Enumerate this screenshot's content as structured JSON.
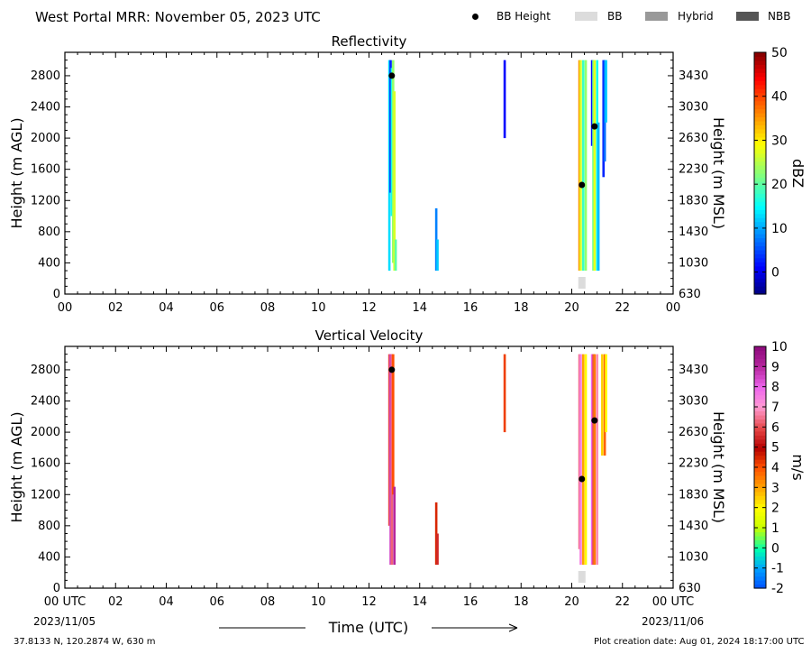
{
  "header": {
    "title": "West Portal MRR:  November 05, 2023 UTC"
  },
  "legend": {
    "items": [
      {
        "label": "BB Height",
        "kind": "dot",
        "color": "#000000"
      },
      {
        "label": "BB",
        "kind": "bar",
        "color": "#dcdcdc"
      },
      {
        "label": "Hybrid",
        "kind": "bar",
        "color": "#999999"
      },
      {
        "label": "NBB",
        "kind": "bar",
        "color": "#555555"
      }
    ]
  },
  "footer": {
    "coords": "37.8133 N, 120.2874 W, 630 m",
    "creation": "Plot creation date: Aug 01, 2024 18:17:00 UTC",
    "date_left": "2023/11/05",
    "date_right": "2023/11/06"
  },
  "chart_data": [
    {
      "type": "heatmap",
      "title": "Reflectivity",
      "xlabel": "",
      "ylabel": "Height (m AGL)",
      "y2label": "Height (m MSL)",
      "xlim": [
        0,
        24
      ],
      "ylim": [
        0,
        3100
      ],
      "x_ticks": [
        "00",
        "02",
        "04",
        "06",
        "08",
        "10",
        "12",
        "14",
        "16",
        "18",
        "20",
        "22",
        "00"
      ],
      "y_ticks": [
        0,
        400,
        800,
        1200,
        1600,
        2000,
        2400,
        2800
      ],
      "y2_ticks": [
        630,
        1030,
        1430,
        1830,
        2230,
        2630,
        3030,
        3430
      ],
      "colorbar": {
        "label": "dBZ",
        "min": -5,
        "max": 50,
        "ticks": [
          0,
          10,
          20,
          30,
          40,
          50
        ]
      },
      "streaks": [
        {
          "t": 12.8,
          "y0": 300,
          "y1": 3000,
          "v": 13
        },
        {
          "t": 12.85,
          "y0": 1300,
          "y1": 3000,
          "v": 3
        },
        {
          "t": 12.9,
          "y0": 1000,
          "y1": 2900,
          "v": 16
        },
        {
          "t": 12.95,
          "y0": 400,
          "y1": 3000,
          "v": 23
        },
        {
          "t": 13.0,
          "y0": 300,
          "y1": 2600,
          "v": 27
        },
        {
          "t": 13.05,
          "y0": 300,
          "y1": 700,
          "v": 20
        },
        {
          "t": 14.65,
          "y0": 300,
          "y1": 1100,
          "v": 8
        },
        {
          "t": 14.7,
          "y0": 300,
          "y1": 700,
          "v": 12
        },
        {
          "t": 17.35,
          "y0": 2000,
          "y1": 3000,
          "v": 1
        },
        {
          "t": 20.3,
          "y0": 300,
          "y1": 3000,
          "v": 35
        },
        {
          "t": 20.35,
          "y0": 300,
          "y1": 3000,
          "v": 27
        },
        {
          "t": 20.45,
          "y0": 300,
          "y1": 3000,
          "v": 18
        },
        {
          "t": 20.55,
          "y0": 300,
          "y1": 3000,
          "v": 23
        },
        {
          "t": 20.8,
          "y0": 1900,
          "y1": 3000,
          "v": 2
        },
        {
          "t": 20.85,
          "y0": 300,
          "y1": 3000,
          "v": 21
        },
        {
          "t": 20.9,
          "y0": 300,
          "y1": 3000,
          "v": 28
        },
        {
          "t": 21.0,
          "y0": 300,
          "y1": 3000,
          "v": 16
        },
        {
          "t": 21.05,
          "y0": 300,
          "y1": 2200,
          "v": 11
        },
        {
          "t": 21.25,
          "y0": 1500,
          "y1": 3000,
          "v": 3
        },
        {
          "t": 21.3,
          "y0": 1700,
          "y1": 3000,
          "v": 7
        },
        {
          "t": 21.35,
          "y0": 2200,
          "y1": 3000,
          "v": 12
        }
      ],
      "bb_height": [
        {
          "t": 12.9,
          "h": 2800
        },
        {
          "t": 20.4,
          "h": 1400
        },
        {
          "t": 20.9,
          "h": 2150
        }
      ],
      "bb_type": [
        {
          "t": 20.4,
          "kind": "BB"
        }
      ]
    },
    {
      "type": "heatmap",
      "title": "Vertical Velocity",
      "xlabel": "Time (UTC)",
      "ylabel": "Height (m AGL)",
      "y2label": "Height (m MSL)",
      "xlim": [
        0,
        24
      ],
      "ylim": [
        0,
        3100
      ],
      "x_ticks": [
        "00 UTC",
        "02",
        "04",
        "06",
        "08",
        "10",
        "12",
        "14",
        "16",
        "18",
        "20",
        "22",
        "00 UTC"
      ],
      "y_ticks": [
        0,
        400,
        800,
        1200,
        1600,
        2000,
        2400,
        2800
      ],
      "y2_ticks": [
        630,
        1030,
        1430,
        1830,
        2230,
        2630,
        3030,
        3430
      ],
      "colorbar": {
        "label": "m/s",
        "min": -2,
        "max": 10,
        "ticks": [
          -2,
          -1,
          0,
          1,
          2,
          3,
          4,
          5,
          6,
          7,
          8,
          9,
          10
        ]
      },
      "streaks": [
        {
          "t": 12.8,
          "y0": 800,
          "y1": 3000,
          "v": 6
        },
        {
          "t": 12.85,
          "y0": 300,
          "y1": 3000,
          "v": 8.5
        },
        {
          "t": 12.9,
          "y0": 300,
          "y1": 3000,
          "v": 6.3
        },
        {
          "t": 12.95,
          "y0": 1200,
          "y1": 3000,
          "v": 4
        },
        {
          "t": 13.0,
          "y0": 300,
          "y1": 1300,
          "v": 9
        },
        {
          "t": 14.65,
          "y0": 300,
          "y1": 1100,
          "v": 4.5
        },
        {
          "t": 14.7,
          "y0": 300,
          "y1": 700,
          "v": 5.5
        },
        {
          "t": 17.35,
          "y0": 2000,
          "y1": 3000,
          "v": 4.2
        },
        {
          "t": 20.3,
          "y0": 500,
          "y1": 3000,
          "v": 6.5
        },
        {
          "t": 20.35,
          "y0": 300,
          "y1": 3000,
          "v": 7.5
        },
        {
          "t": 20.45,
          "y0": 300,
          "y1": 3000,
          "v": 3
        },
        {
          "t": 20.55,
          "y0": 300,
          "y1": 3000,
          "v": 2
        },
        {
          "t": 20.8,
          "y0": 300,
          "y1": 3000,
          "v": 8
        },
        {
          "t": 20.85,
          "y0": 300,
          "y1": 3000,
          "v": 6
        },
        {
          "t": 20.9,
          "y0": 300,
          "y1": 3000,
          "v": 3.5
        },
        {
          "t": 21.0,
          "y0": 300,
          "y1": 3000,
          "v": 6.8
        },
        {
          "t": 21.2,
          "y0": 1700,
          "y1": 3000,
          "v": 2.5
        },
        {
          "t": 21.3,
          "y0": 1700,
          "y1": 3000,
          "v": 3.8
        },
        {
          "t": 21.35,
          "y0": 2000,
          "y1": 3000,
          "v": 2
        }
      ],
      "bb_height": [
        {
          "t": 12.9,
          "h": 2800
        },
        {
          "t": 20.4,
          "h": 1400
        },
        {
          "t": 20.9,
          "h": 2150
        }
      ],
      "bb_type": [
        {
          "t": 20.4,
          "kind": "BB"
        }
      ]
    }
  ]
}
